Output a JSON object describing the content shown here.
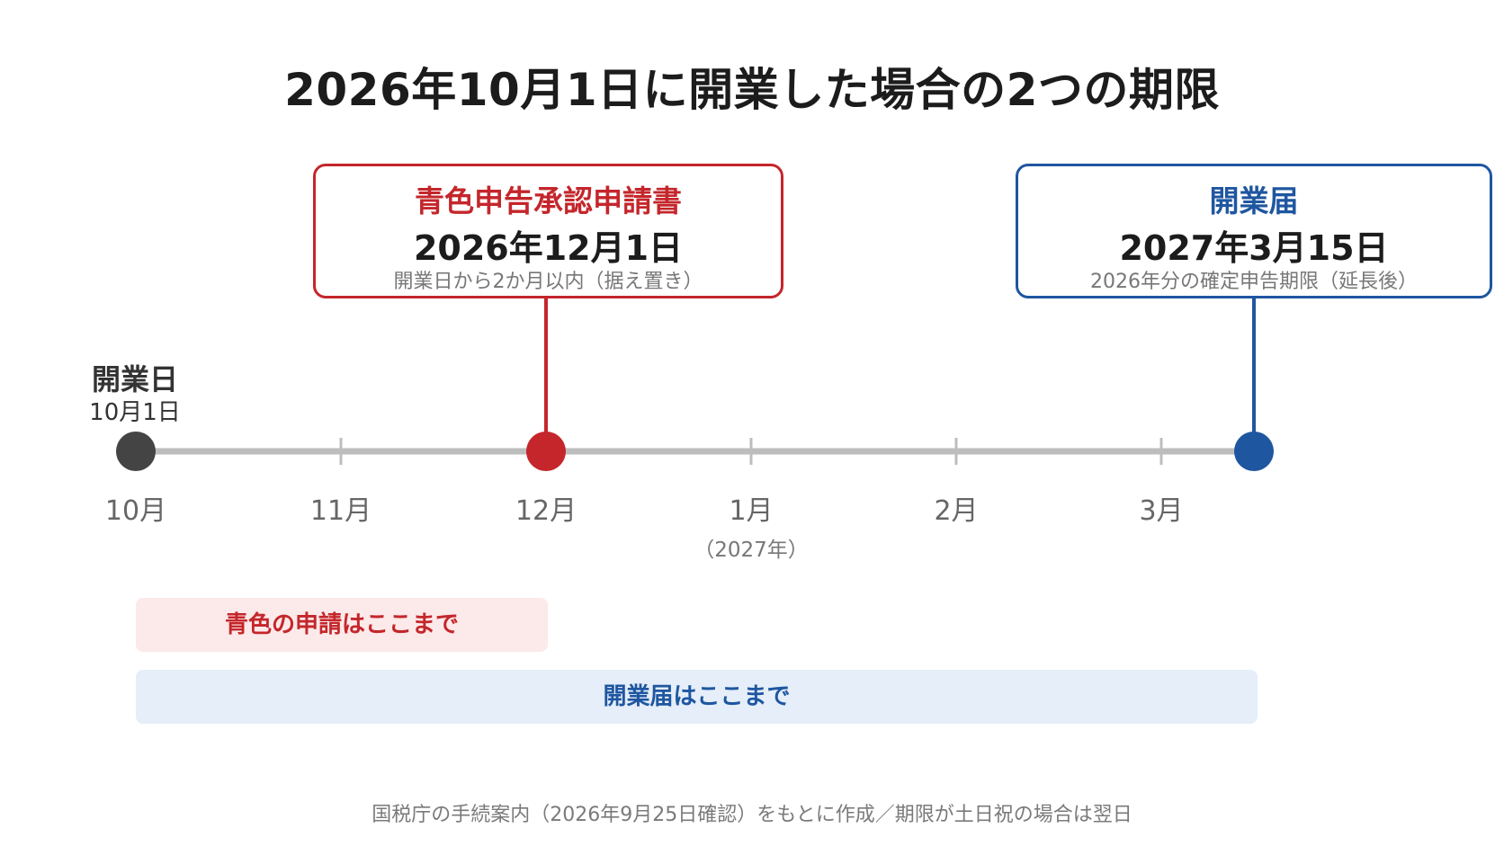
{
  "title": "2026年10月1日に開業した場合の2つの期限",
  "callouts": {
    "aoiro": {
      "name": "青色申告承認申請書",
      "date": "2026年12月1日",
      "note": "開業日から2か月以内（据え置き）",
      "color": "#c4262b"
    },
    "kaigyo": {
      "name": "開業届",
      "date": "2027年3月15日",
      "note": "2026年分の確定申告期限（延長後）",
      "color": "#1f56a0"
    }
  },
  "start": {
    "label": "開業日",
    "date": "10月1日",
    "color": "#444444"
  },
  "timeline": {
    "months": [
      "10月",
      "11月",
      "12月",
      "1月",
      "2月",
      "3月"
    ],
    "year_note": "（2027年）",
    "line_color": "#bdbdbd"
  },
  "bands": {
    "aoiro": "青色の申請はここまで",
    "kaigyo": "開業届はここまで"
  },
  "footnote": "国税庁の手続案内（2026年9月25日確認）をもとに作成／期限が土日祝の場合は翌日"
}
